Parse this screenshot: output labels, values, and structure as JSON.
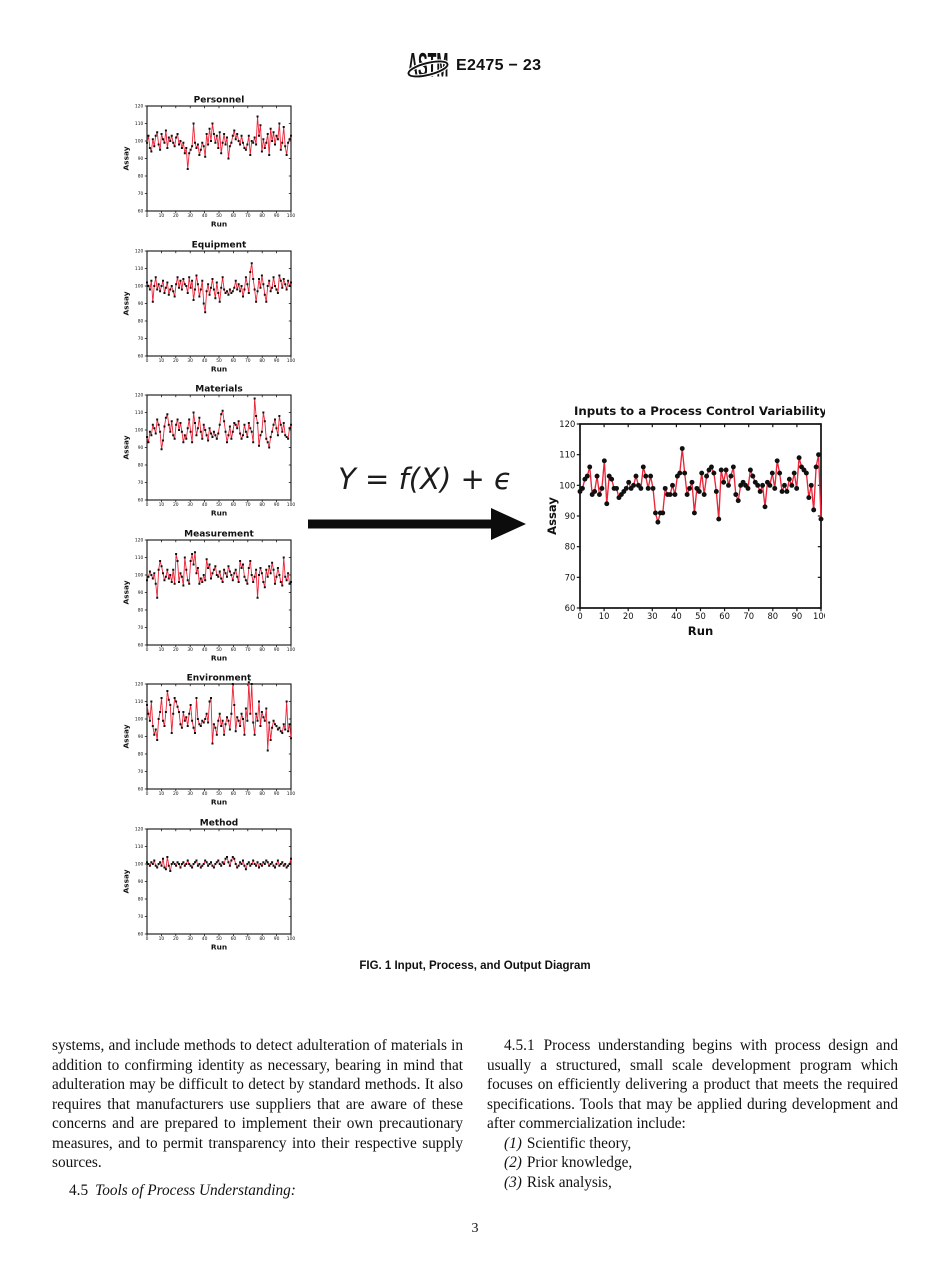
{
  "header": {
    "doc_code": "E2475 − 23"
  },
  "figure": {
    "equation": "Y = f(X) + ϵ",
    "caption": "FIG. 1 Input, Process, and Output Diagram"
  },
  "colors": {
    "line": "#ec2438",
    "marker": "#101010",
    "ink": "#111111"
  },
  "chart_data": [
    {
      "type": "line",
      "title": "Personnel",
      "xlabel": "Run",
      "ylabel": "Assay",
      "xlim": [
        0,
        100
      ],
      "ylim": [
        60,
        120
      ],
      "xtick_step": 10,
      "ytick_step": 10,
      "grid": false,
      "legend": "none",
      "marker": "square",
      "values": [
        99,
        103,
        96,
        94,
        101,
        97,
        103,
        105,
        98,
        95,
        104,
        101,
        99,
        106,
        96,
        102,
        100,
        103,
        99,
        97,
        102,
        104,
        98,
        100,
        96,
        99,
        93,
        96,
        84,
        93,
        95,
        97,
        110,
        99,
        96,
        98,
        92,
        95,
        99,
        97,
        91,
        104,
        98,
        107,
        100,
        110,
        104,
        99,
        103,
        96,
        105,
        93,
        99,
        104,
        98,
        102,
        90,
        97,
        99,
        103,
        106,
        101,
        104,
        100,
        98,
        103,
        99,
        96,
        95,
        98,
        103,
        92,
        100,
        99,
        102,
        98,
        114,
        103,
        109,
        94,
        101,
        96,
        99,
        104,
        92,
        107,
        100,
        105,
        98,
        103,
        101,
        110,
        95,
        99,
        108,
        97,
        92,
        99,
        101,
        103
      ]
    },
    {
      "type": "line",
      "title": "Equipment",
      "xlabel": "Run",
      "ylabel": "Assay",
      "xlim": [
        0,
        100
      ],
      "ylim": [
        60,
        120
      ],
      "xtick_step": 10,
      "ytick_step": 10,
      "grid": false,
      "legend": "none",
      "marker": "square",
      "values": [
        102,
        100,
        98,
        103,
        91,
        100,
        105,
        98,
        101,
        97,
        100,
        103,
        96,
        99,
        102,
        95,
        98,
        100,
        97,
        94,
        101,
        105,
        99,
        103,
        98,
        104,
        101,
        100,
        96,
        105,
        99,
        103,
        92,
        98,
        106,
        101,
        94,
        98,
        103,
        90,
        85,
        97,
        101,
        95,
        99,
        104,
        98,
        93,
        102,
        96,
        91,
        99,
        105,
        98,
        96,
        97,
        95,
        98,
        96,
        97,
        99,
        103,
        98,
        101,
        97,
        100,
        94,
        98,
        105,
        101,
        96,
        108,
        113,
        104,
        98,
        91,
        97,
        104,
        99,
        106,
        101,
        95,
        91,
        100,
        103,
        97,
        99,
        105,
        100,
        98,
        96,
        106,
        103,
        99,
        104,
        101,
        98,
        103,
        100,
        102
      ]
    },
    {
      "type": "line",
      "title": "Materials",
      "xlabel": "Run",
      "ylabel": "Assay",
      "xlim": [
        0,
        100
      ],
      "ylim": [
        60,
        120
      ],
      "xtick_step": 10,
      "ytick_step": 10,
      "grid": false,
      "legend": "none",
      "marker": "square",
      "values": [
        96,
        93,
        99,
        97,
        103,
        101,
        98,
        106,
        103,
        99,
        89,
        94,
        102,
        107,
        109,
        103,
        99,
        105,
        97,
        95,
        103,
        106,
        100,
        104,
        99,
        93,
        97,
        95,
        101,
        106,
        99,
        93,
        110,
        104,
        97,
        101,
        107,
        99,
        95,
        103,
        100,
        97,
        94,
        101,
        98,
        96,
        99,
        97,
        95,
        98,
        103,
        109,
        111,
        105,
        99,
        93,
        97,
        102,
        95,
        99,
        104,
        103,
        101,
        105,
        98,
        95,
        97,
        103,
        99,
        96,
        104,
        101,
        99,
        93,
        118,
        108,
        104,
        91,
        97,
        99,
        110,
        105,
        95,
        93,
        90,
        96,
        99,
        103,
        106,
        101,
        97,
        108,
        103,
        99,
        104,
        97,
        96,
        95,
        101,
        103
      ]
    },
    {
      "type": "line",
      "title": "Measurement",
      "xlabel": "Run",
      "ylabel": "Assay",
      "xlim": [
        0,
        100
      ],
      "ylim": [
        60,
        120
      ],
      "xtick_step": 10,
      "ytick_step": 10,
      "grid": false,
      "legend": "none",
      "marker": "square",
      "values": [
        97,
        99,
        102,
        100,
        98,
        101,
        95,
        87,
        103,
        108,
        105,
        101,
        97,
        99,
        103,
        98,
        100,
        96,
        103,
        95,
        112,
        108,
        96,
        101,
        99,
        94,
        110,
        103,
        97,
        95,
        108,
        112,
        106,
        113,
        101,
        104,
        95,
        98,
        96,
        100,
        97,
        109,
        104,
        106,
        98,
        101,
        103,
        105,
        100,
        99,
        102,
        98,
        96,
        103,
        101,
        99,
        105,
        102,
        100,
        97,
        101,
        103,
        99,
        96,
        108,
        104,
        106,
        99,
        97,
        95,
        104,
        108,
        100,
        96,
        99,
        103,
        87,
        100,
        104,
        101,
        96,
        93,
        103,
        99,
        105,
        101,
        107,
        103,
        95,
        99,
        104,
        100,
        96,
        94,
        110,
        99,
        97,
        101,
        95,
        96
      ]
    },
    {
      "type": "line",
      "title": "Environment",
      "xlabel": "Run",
      "ylabel": "Assay",
      "xlim": [
        0,
        100
      ],
      "ylim": [
        60,
        120
      ],
      "xtick_step": 10,
      "ytick_step": 10,
      "grid": false,
      "legend": "none",
      "marker": "square",
      "values": [
        108,
        103,
        99,
        110,
        96,
        91,
        94,
        88,
        100,
        104,
        112,
        99,
        96,
        104,
        116,
        111,
        108,
        92,
        103,
        112,
        110,
        107,
        104,
        97,
        95,
        104,
        99,
        101,
        96,
        103,
        108,
        99,
        95,
        92,
        112,
        100,
        97,
        96,
        99,
        98,
        100,
        103,
        98,
        110,
        112,
        86,
        97,
        95,
        91,
        99,
        103,
        96,
        99,
        91,
        97,
        101,
        99,
        94,
        103,
        120,
        108,
        93,
        101,
        99,
        96,
        103,
        100,
        91,
        106,
        99,
        121,
        103,
        120,
        98,
        91,
        103,
        99,
        110,
        96,
        104,
        101,
        99,
        106,
        82,
        98,
        88,
        95,
        99,
        97,
        96,
        94,
        95,
        93,
        92,
        97,
        94,
        110,
        93,
        97,
        89
      ]
    },
    {
      "type": "line",
      "title": "Method",
      "xlabel": "Run",
      "ylabel": "Assay",
      "xlim": [
        0,
        100
      ],
      "ylim": [
        60,
        120
      ],
      "xtick_step": 10,
      "ytick_step": 10,
      "grid": false,
      "legend": "none",
      "marker": "square",
      "values": [
        101,
        100,
        99,
        101,
        100,
        102,
        99,
        98,
        100,
        101,
        99,
        103,
        98,
        97,
        104,
        99,
        96,
        100,
        101,
        100,
        99,
        101,
        100,
        98,
        100,
        101,
        99,
        100,
        102,
        100,
        99,
        98,
        100,
        101,
        102,
        99,
        100,
        98,
        99,
        100,
        102,
        101,
        99,
        100,
        101,
        99,
        98,
        100,
        101,
        102,
        100,
        99,
        101,
        100,
        103,
        104,
        101,
        99,
        102,
        104,
        103,
        100,
        98,
        99,
        101,
        100,
        102,
        99,
        97,
        100,
        101,
        99,
        100,
        102,
        100,
        99,
        101,
        98,
        100,
        99,
        101,
        100,
        102,
        101,
        99,
        100,
        101,
        99,
        98,
        100,
        102,
        99,
        100,
        101,
        99,
        100,
        98,
        99,
        100,
        103
      ]
    },
    {
      "type": "line",
      "title": "Inputs to a Process Control Variability",
      "xlabel": "Run",
      "ylabel": "Assay",
      "xlim": [
        0,
        100
      ],
      "ylim": [
        60,
        120
      ],
      "xtick_step": 10,
      "ytick_step": 10,
      "grid": false,
      "legend": "none",
      "marker": "circle",
      "values": [
        98,
        99,
        102,
        103,
        106,
        97,
        98,
        103,
        97,
        99,
        108,
        94,
        103,
        102,
        99,
        99,
        96,
        97,
        98,
        99,
        101,
        99,
        100,
        103,
        100,
        99,
        106,
        103,
        99,
        103,
        99,
        91,
        88,
        91,
        91,
        99,
        97,
        97,
        100,
        97,
        103,
        104,
        112,
        104,
        97,
        99,
        101,
        91,
        99,
        98,
        104,
        97,
        103,
        105,
        106,
        104,
        98,
        89,
        105,
        101,
        105,
        100,
        103,
        106,
        97,
        95,
        100,
        101,
        100,
        99,
        105,
        103,
        101,
        100,
        98,
        100,
        93,
        101,
        100,
        104,
        99,
        108,
        104,
        98,
        100,
        98,
        102,
        100,
        104,
        99,
        109,
        106,
        105,
        104,
        96,
        100,
        92,
        106,
        110,
        89
      ]
    }
  ],
  "body": {
    "left": {
      "para": "systems, and include methods to detect adulteration of materials in addition to confirming identity as necessary, bearing in mind that adulteration may be difficult to detect by standard methods. It also requires that manufacturers use suppliers that are aware of these concerns and are prepared to implement their own precautionary measures, and to permit transparency into their respective supply sources.",
      "section_number": "4.5",
      "section_title": "Tools of Process Understanding:"
    },
    "right": {
      "para_number": "4.5.1",
      "para": "Process understanding begins with process design and usually a structured, small scale development program which focuses on efficiently delivering a product that meets the required specifications. Tools that may be applied during development and after commercialization include:",
      "items": [
        {
          "num": "(1)",
          "text": "Scientific theory,"
        },
        {
          "num": "(2)",
          "text": "Prior knowledge,"
        },
        {
          "num": "(3)",
          "text": "Risk analysis,"
        }
      ]
    }
  },
  "footer": {
    "page_number": "3"
  }
}
